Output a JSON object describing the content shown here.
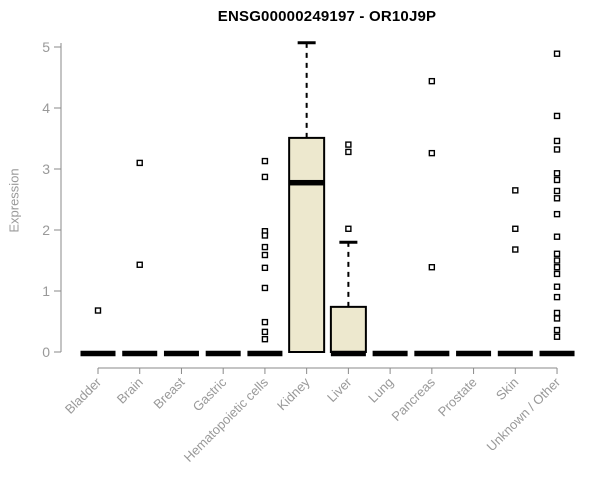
{
  "chart_data": {
    "type": "boxplot",
    "title": "ENSG00000249197 - OR10J9P",
    "ylabel": "Expression",
    "ylim": [
      0,
      5
    ],
    "yticks": [
      0,
      1,
      2,
      3,
      4,
      5
    ],
    "grid": false,
    "legend": "none",
    "categories": [
      "Bladder",
      "Brain",
      "Breast",
      "Gastric",
      "Hematopoietic cells",
      "Kidney",
      "Liver",
      "Lung",
      "Pancreas",
      "Prostate",
      "Skin",
      "Unknown / Other"
    ],
    "boxes": [
      {
        "category": "Bladder",
        "q1": 0,
        "median": 0,
        "q3": 0,
        "whisker_low": 0,
        "whisker_high": 0,
        "outliers": [
          0.68
        ]
      },
      {
        "category": "Brain",
        "q1": 0,
        "median": 0,
        "q3": 0,
        "whisker_low": 0,
        "whisker_high": 0,
        "outliers": [
          3.1,
          1.43
        ]
      },
      {
        "category": "Breast",
        "q1": 0,
        "median": 0,
        "q3": 0,
        "whisker_low": 0,
        "whisker_high": 0,
        "outliers": []
      },
      {
        "category": "Gastric",
        "q1": 0,
        "median": 0,
        "q3": 0,
        "whisker_low": 0,
        "whisker_high": 0,
        "outliers": []
      },
      {
        "category": "Hematopoietic cells",
        "q1": 0,
        "median": 0,
        "q3": 0,
        "whisker_low": 0,
        "whisker_high": 0,
        "outliers": [
          3.13,
          2.87,
          1.98,
          1.91,
          1.72,
          1.59,
          1.38,
          1.05,
          0.49,
          0.33,
          0.21
        ]
      },
      {
        "category": "Kidney",
        "q1": 0,
        "median": 2.8,
        "q3": 3.51,
        "whisker_low": 0,
        "whisker_high": 5.07,
        "outliers": []
      },
      {
        "category": "Liver",
        "q1": 0,
        "median": 0,
        "q3": 0.74,
        "whisker_low": 0,
        "whisker_high": 1.8,
        "outliers": [
          3.4,
          3.28,
          2.02
        ]
      },
      {
        "category": "Lung",
        "q1": 0,
        "median": 0,
        "q3": 0,
        "whisker_low": 0,
        "whisker_high": 0,
        "outliers": []
      },
      {
        "category": "Pancreas",
        "q1": 0,
        "median": 0,
        "q3": 0,
        "whisker_low": 0,
        "whisker_high": 0,
        "outliers": [
          4.44,
          3.26,
          1.39
        ]
      },
      {
        "category": "Prostate",
        "q1": 0,
        "median": 0,
        "q3": 0,
        "whisker_low": 0,
        "whisker_high": 0,
        "outliers": []
      },
      {
        "category": "Skin",
        "q1": 0,
        "median": 0,
        "q3": 0,
        "whisker_low": 0,
        "whisker_high": 0,
        "outliers": [
          2.65,
          2.02,
          1.68
        ]
      },
      {
        "category": "Unknown / Other",
        "q1": 0,
        "median": 0,
        "q3": 0,
        "whisker_low": 0,
        "whisker_high": 0,
        "outliers": [
          4.89,
          3.87,
          3.46,
          3.32,
          2.93,
          2.82,
          2.64,
          2.52,
          2.26,
          1.89,
          1.61,
          1.5,
          1.39,
          1.28,
          1.07,
          0.9,
          0.64,
          0.55,
          0.36,
          0.25
        ]
      }
    ],
    "colors": {
      "box_fill": "#EDE8CE",
      "box_border": "#000000",
      "median": "#000000",
      "outlier_fill": "#ffffff",
      "outlier_border": "#000000",
      "axis_line": "#8a8a8a",
      "tick_label": "#999999",
      "title": "#000000"
    }
  }
}
